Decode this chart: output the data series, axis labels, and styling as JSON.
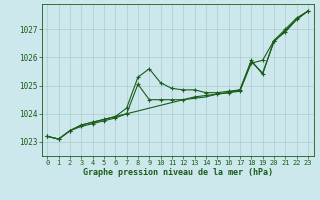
{
  "title": "Graphe pression niveau de la mer (hPa)",
  "bg_color": "#cce8ec",
  "grid_color": "#aacccc",
  "line_color": "#1a5c1a",
  "xlim": [
    -0.5,
    23.5
  ],
  "ylim": [
    1022.5,
    1027.9
  ],
  "yticks": [
    1023,
    1024,
    1025,
    1026,
    1027
  ],
  "xticks": [
    0,
    1,
    2,
    3,
    4,
    5,
    6,
    7,
    8,
    9,
    10,
    11,
    12,
    13,
    14,
    15,
    16,
    17,
    18,
    19,
    20,
    21,
    22,
    23
  ],
  "series1_x": [
    0,
    1,
    2,
    3,
    4,
    5,
    6,
    7,
    8,
    9,
    10,
    11,
    12,
    13,
    14,
    15,
    16,
    17,
    18,
    19,
    20,
    21,
    22,
    23
  ],
  "series1_y": [
    1023.2,
    1023.1,
    1023.4,
    1023.6,
    1023.7,
    1023.8,
    1023.9,
    1024.2,
    1025.3,
    1025.6,
    1025.1,
    1024.9,
    1024.85,
    1024.85,
    1024.75,
    1024.75,
    1024.8,
    1024.85,
    1025.9,
    1025.4,
    1026.6,
    1027.0,
    1027.4,
    1027.65
  ],
  "series2_x": [
    0,
    1,
    2,
    3,
    4,
    5,
    6,
    7,
    8,
    9,
    10,
    11,
    12,
    13,
    14,
    15,
    16,
    17,
    18,
    19,
    20,
    21,
    22,
    23
  ],
  "series2_y": [
    1023.2,
    1023.1,
    1023.4,
    1023.6,
    1023.7,
    1023.8,
    1023.9,
    1024.0,
    1024.1,
    1024.2,
    1024.3,
    1024.4,
    1024.5,
    1024.55,
    1024.6,
    1024.7,
    1024.75,
    1024.85,
    1025.85,
    1025.45,
    1026.55,
    1026.95,
    1027.35,
    1027.65
  ],
  "series3_x": [
    0,
    1,
    2,
    3,
    4,
    5,
    6,
    7,
    8,
    9,
    10,
    11,
    12,
    13,
    14,
    15,
    16,
    17,
    18,
    19,
    20,
    21,
    22,
    23
  ],
  "series3_y": [
    1023.2,
    1023.1,
    1023.4,
    1023.55,
    1023.65,
    1023.75,
    1023.85,
    1024.0,
    1025.05,
    1024.5,
    1024.5,
    1024.5,
    1024.5,
    1024.6,
    1024.65,
    1024.7,
    1024.75,
    1024.8,
    1025.8,
    1025.9,
    1026.6,
    1026.9,
    1027.35,
    1027.65
  ]
}
